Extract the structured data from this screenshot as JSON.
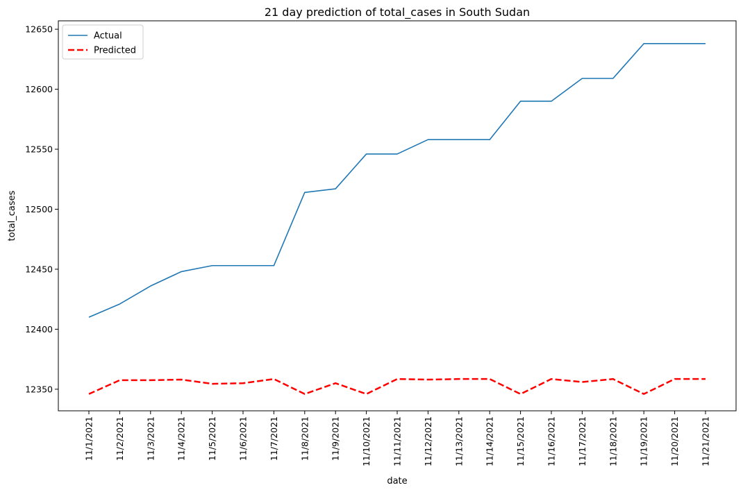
{
  "chart_data": {
    "type": "line",
    "title": "21 day prediction of total_cases in South Sudan",
    "xlabel": "date",
    "ylabel": "total_cases",
    "categories": [
      "11/1/2021",
      "11/2/2021",
      "11/3/2021",
      "11/4/2021",
      "11/5/2021",
      "11/6/2021",
      "11/7/2021",
      "11/8/2021",
      "11/9/2021",
      "11/10/2021",
      "11/11/2021",
      "11/12/2021",
      "11/13/2021",
      "11/14/2021",
      "11/15/2021",
      "11/16/2021",
      "11/17/2021",
      "11/18/2021",
      "11/19/2021",
      "11/20/2021",
      "11/21/2021"
    ],
    "ylim": [
      12332,
      12657
    ],
    "yticks": [
      12350,
      12400,
      12450,
      12500,
      12550,
      12600,
      12650
    ],
    "grid": false,
    "legend_position": "top-left",
    "series": [
      {
        "name": "Actual",
        "color": "#1f77b4",
        "style": "solid",
        "values": [
          12410,
          12421,
          12436,
          12448,
          12453,
          12453,
          12453,
          12514,
          12517,
          12546,
          12546,
          12558,
          12558,
          12558,
          12590,
          12590,
          12609,
          12609,
          12638,
          12638,
          12638
        ]
      },
      {
        "name": "Predicted",
        "color": "#ff0000",
        "style": "dashed",
        "values": [
          12346,
          12357.5,
          12357.5,
          12358,
          12354.5,
          12355,
          12358.5,
          12346,
          12355,
          12346,
          12358.5,
          12358,
          12358.5,
          12358.5,
          12346,
          12358.5,
          12356,
          12358.5,
          12346,
          12358.5,
          12358.5
        ]
      }
    ]
  }
}
